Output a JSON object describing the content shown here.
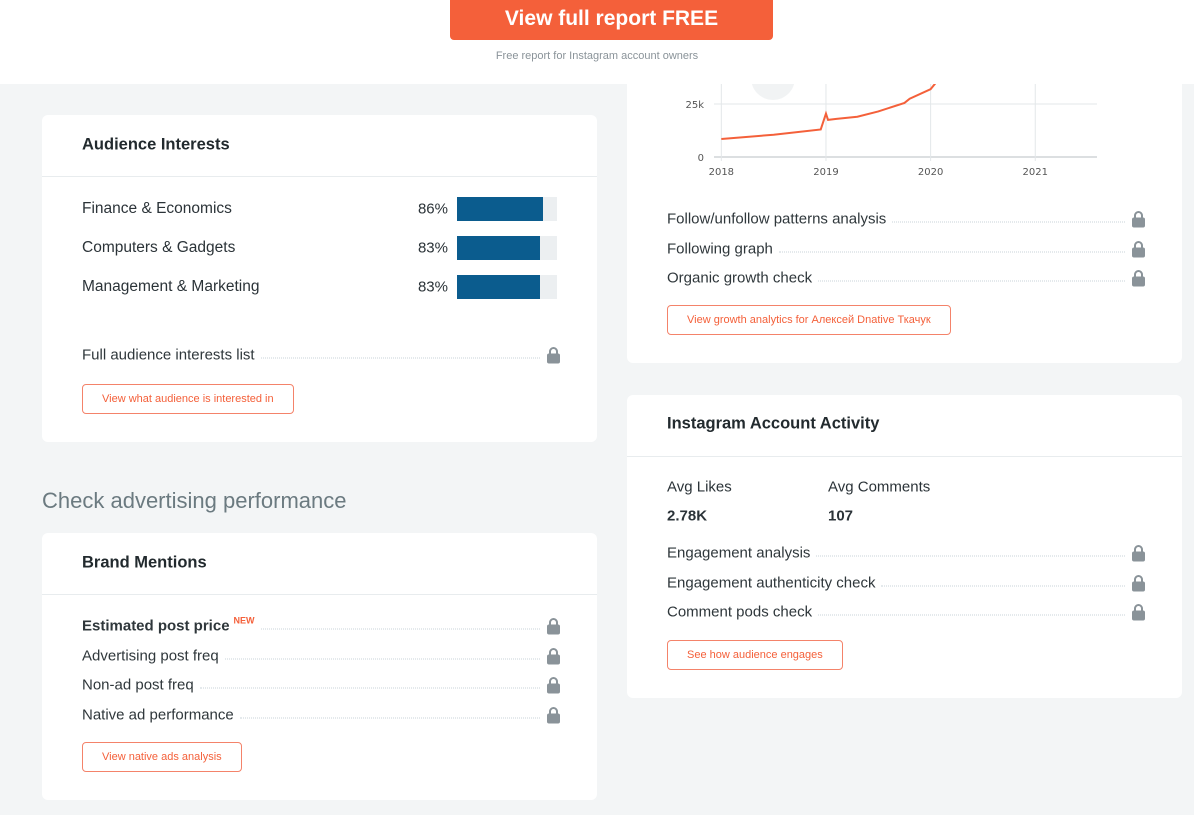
{
  "header": {
    "button": "View full report FREE",
    "note": "Free report for Instagram account owners"
  },
  "audience_interests": {
    "title": "Audience Interests",
    "items": [
      {
        "name": "Finance & Economics",
        "value": 86,
        "label": "86%"
      },
      {
        "name": "Computers & Gadgets",
        "value": 83,
        "label": "83%"
      },
      {
        "name": "Management & Marketing",
        "value": 83,
        "label": "83%"
      }
    ],
    "locked": [
      "Full audience interests list"
    ],
    "button": "View what audience is interested in"
  },
  "section_heading": "Check advertising performance",
  "brand_mentions": {
    "title": "Brand Mentions",
    "locked": [
      "Estimated post price",
      "Advertising post freq",
      "Non-ad post freq",
      "Native ad performance"
    ],
    "new_badge": "NEW",
    "button": "View native ads analysis"
  },
  "growth": {
    "chart_data": {
      "type": "line",
      "x": [
        2018.0,
        2018.5,
        2018.95,
        2019.0,
        2019.02,
        2019.1,
        2019.3,
        2019.5,
        2019.75,
        2019.8,
        2020.0,
        2020.05
      ],
      "series": [
        {
          "color": "#f4603a",
          "values": [
            8500,
            10500,
            13000,
            20500,
            17500,
            18000,
            19000,
            21500,
            25500,
            27500,
            32000,
            35000
          ]
        }
      ],
      "xlim": [
        2017.93,
        2021.59
      ],
      "ylim": [
        0,
        50000
      ],
      "xticks": [
        2018,
        2019,
        2020,
        2021
      ],
      "yticks": [
        0,
        {
          "value": 25000,
          "label": "25k"
        }
      ],
      "grid": true
    },
    "locked": [
      "Follow/unfollow patterns analysis",
      "Following graph",
      "Organic growth check"
    ],
    "button": "View growth analytics for Алексей Dnative Ткачук"
  },
  "activity": {
    "title": "Instagram Account Activity",
    "stats": [
      {
        "label": "Avg Likes",
        "value": "2.78K"
      },
      {
        "label": "Avg Comments",
        "value": "107"
      }
    ],
    "locked": [
      "Engagement analysis",
      "Engagement authenticity check",
      "Comment pods check"
    ],
    "button": "See how audience engages"
  }
}
